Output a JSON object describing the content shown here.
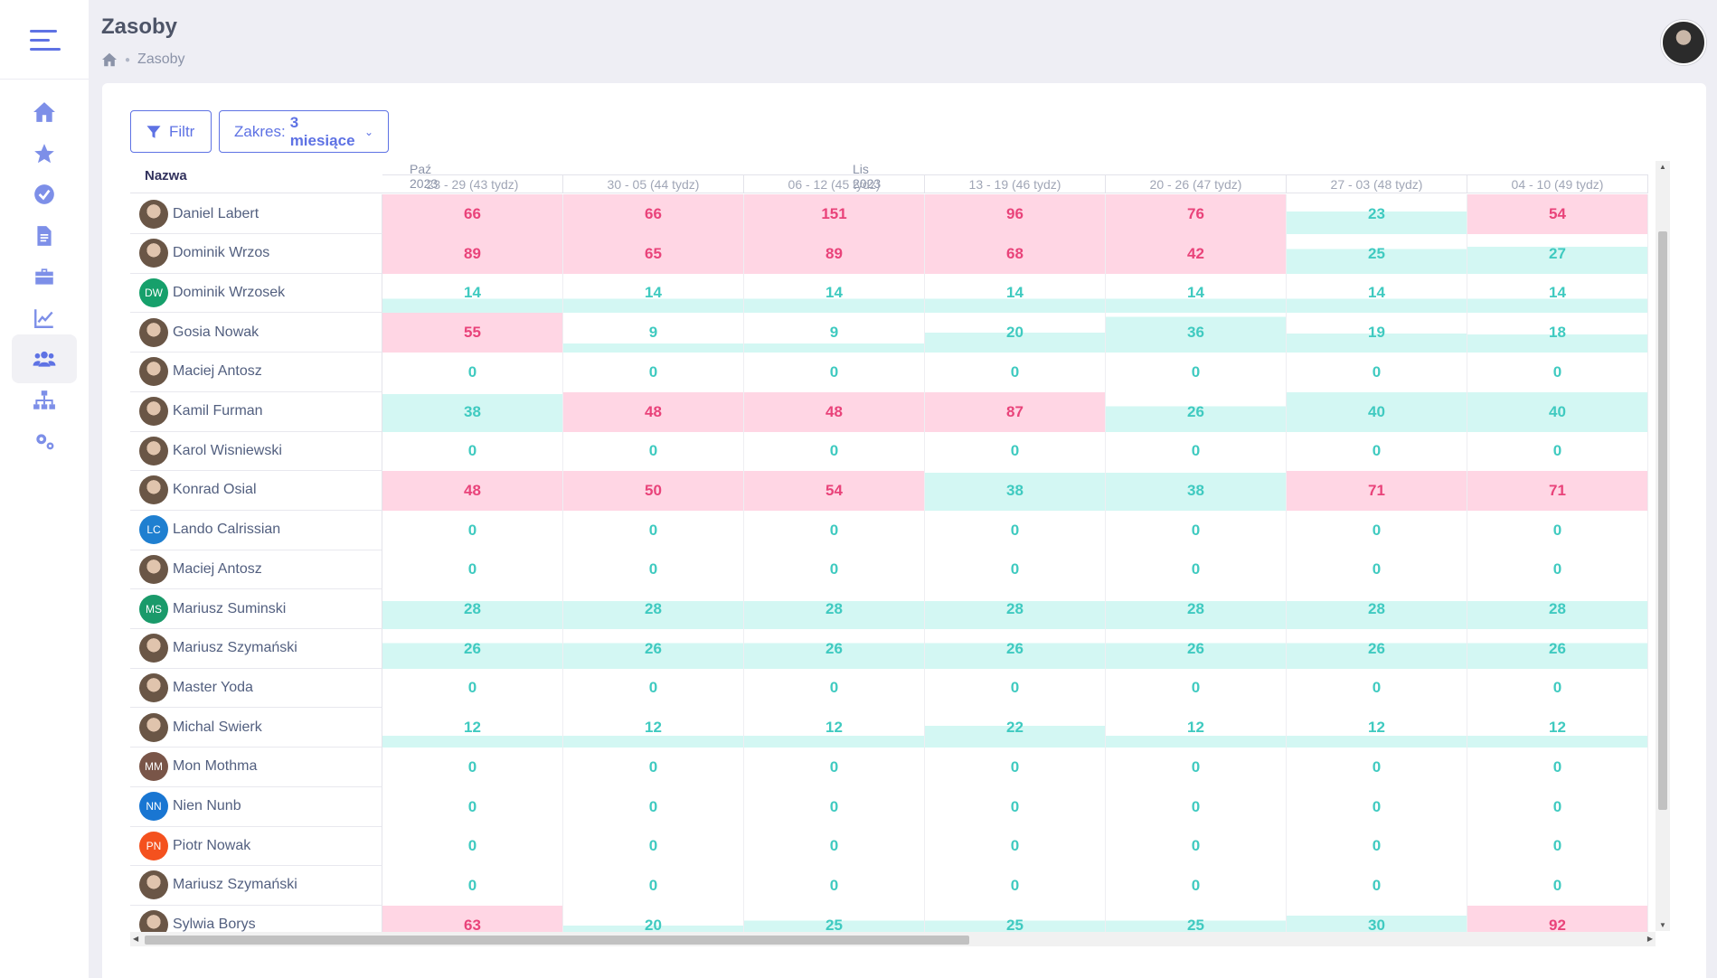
{
  "page": {
    "title": "Zasoby",
    "breadcrumb": [
      "Zasoby"
    ]
  },
  "toolbar": {
    "filter_label": "Filtr",
    "range_prefix": "Zakres:",
    "range_value": "3 miesiące"
  },
  "table": {
    "name_header": "Nazwa",
    "months": [
      {
        "label": "Paź 2023"
      },
      {
        "label": "Lis 2023"
      }
    ],
    "weeks": [
      "23 - 29 (43 tydz)",
      "30 - 05 (44 tydz)",
      "06 - 12 (45 tydz)",
      "13 - 19 (46 tydz)",
      "20 - 26 (47 tydz)",
      "27 - 03 (48 tydz)",
      "04 - 10 (49 tydz)"
    ],
    "capacity_threshold": 40,
    "rows": [
      {
        "name": "Daniel Labert",
        "initials": "",
        "avatar_color": "",
        "values": [
          66,
          66,
          151,
          96,
          76,
          23,
          54
        ]
      },
      {
        "name": "Dominik Wrzos",
        "initials": "",
        "avatar_color": "",
        "values": [
          89,
          65,
          89,
          68,
          42,
          25,
          27
        ]
      },
      {
        "name": "Dominik Wrzosek",
        "initials": "DW",
        "avatar_color": "#16a06b",
        "values": [
          14,
          14,
          14,
          14,
          14,
          14,
          14
        ]
      },
      {
        "name": "Gosia Nowak",
        "initials": "",
        "avatar_color": "",
        "values": [
          55,
          9,
          9,
          20,
          36,
          19,
          18
        ]
      },
      {
        "name": "Maciej Antosz",
        "initials": "",
        "avatar_color": "",
        "values": [
          0,
          0,
          0,
          0,
          0,
          0,
          0
        ]
      },
      {
        "name": "Kamil Furman",
        "initials": "",
        "avatar_color": "",
        "values": [
          38,
          48,
          48,
          87,
          26,
          40,
          40
        ]
      },
      {
        "name": "Karol Wisniewski",
        "initials": "",
        "avatar_color": "",
        "values": [
          0,
          0,
          0,
          0,
          0,
          0,
          0
        ]
      },
      {
        "name": "Konrad Osial",
        "initials": "",
        "avatar_color": "",
        "values": [
          48,
          50,
          54,
          38,
          38,
          71,
          71
        ]
      },
      {
        "name": "Lando Calrissian",
        "initials": "LC",
        "avatar_color": "#1f7fd0",
        "values": [
          0,
          0,
          0,
          0,
          0,
          0,
          0
        ]
      },
      {
        "name": "Maciej Antosz",
        "initials": "",
        "avatar_color": "",
        "values": [
          0,
          0,
          0,
          0,
          0,
          0,
          0
        ]
      },
      {
        "name": "Mariusz Suminski",
        "initials": "MS",
        "avatar_color": "#1a9a6a",
        "values": [
          28,
          28,
          28,
          28,
          28,
          28,
          28
        ]
      },
      {
        "name": "Mariusz Szymański",
        "initials": "",
        "avatar_color": "",
        "values": [
          26,
          26,
          26,
          26,
          26,
          26,
          26
        ]
      },
      {
        "name": "Master Yoda",
        "initials": "",
        "avatar_color": "",
        "values": [
          0,
          0,
          0,
          0,
          0,
          0,
          0
        ]
      },
      {
        "name": "Michal Swierk",
        "initials": "",
        "avatar_color": "",
        "values": [
          12,
          12,
          12,
          22,
          12,
          12,
          12
        ]
      },
      {
        "name": "Mon Mothma",
        "initials": "MM",
        "avatar_color": "#795548",
        "values": [
          0,
          0,
          0,
          0,
          0,
          0,
          0
        ]
      },
      {
        "name": "Nien Nunb",
        "initials": "NN",
        "avatar_color": "#1976d2",
        "values": [
          0,
          0,
          0,
          0,
          0,
          0,
          0
        ]
      },
      {
        "name": "Piotr Nowak",
        "initials": "PN",
        "avatar_color": "#f4511e",
        "values": [
          0,
          0,
          0,
          0,
          0,
          0,
          0
        ]
      },
      {
        "name": "Mariusz Szymański",
        "initials": "",
        "avatar_color": "",
        "values": [
          0,
          0,
          0,
          0,
          0,
          0,
          0
        ]
      },
      {
        "name": "Sylwia Borys",
        "initials": "",
        "avatar_color": "",
        "values": [
          63,
          20,
          25,
          25,
          25,
          30,
          92
        ]
      }
    ]
  },
  "colors": {
    "accent": "#5e72e4",
    "over_bg": "#ffd6e4",
    "over_text": "#e9437a",
    "under_bg": "#d3f7f3",
    "under_text": "#3fcac0"
  },
  "nav": {
    "items": [
      {
        "icon": "home-icon"
      },
      {
        "icon": "star-icon"
      },
      {
        "icon": "check-circle-icon"
      },
      {
        "icon": "document-icon"
      },
      {
        "icon": "briefcase-icon"
      },
      {
        "icon": "chart-line-icon"
      },
      {
        "icon": "users-icon",
        "active": true
      },
      {
        "icon": "sitemap-icon"
      },
      {
        "icon": "cogs-icon"
      }
    ]
  }
}
